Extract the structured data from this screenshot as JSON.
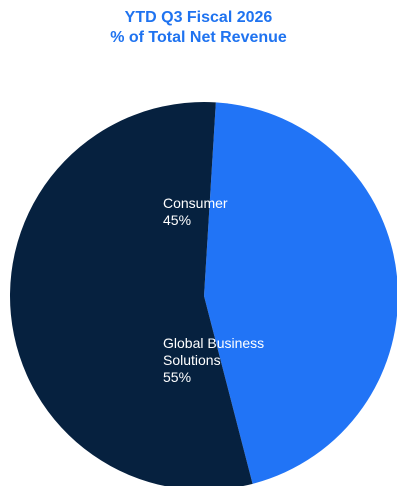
{
  "chart_data": {
    "type": "pie",
    "title": "YTD Q3 Fiscal 2026",
    "subtitle": "% of Total Net Revenue",
    "slices": [
      {
        "name": "Consumer",
        "label_lines": [
          "Consumer"
        ],
        "value": 45,
        "value_label": "45%",
        "color": "#2174f6"
      },
      {
        "name": "Global Business Solutions",
        "label_lines": [
          "Global Business",
          "Solutions"
        ],
        "value": 55,
        "value_label": "55%",
        "color": "#06213f"
      }
    ]
  }
}
